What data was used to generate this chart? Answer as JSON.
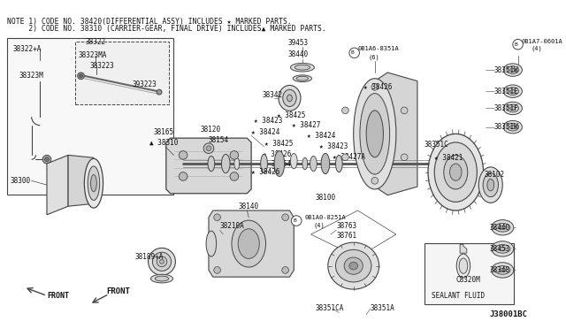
{
  "bg_color": "#ffffff",
  "line_color": "#444444",
  "text_color": "#111111",
  "note_line1": "NOTE 1) CODE NO. 38420(DIFFERENTIAL ASSY) INCLUDES ★ MARKED PARTS.",
  "note_line2": "     2) CODE NO. 38310 (CARRIER-GEAR, FINAL DRIVE) INCLUDES▲ MARKED PARTS.",
  "diagram_id": "J38001BC",
  "sealant_label": "SEALANT FLUID",
  "sealant_part": "C8320M",
  "figsize": [
    6.4,
    3.72
  ],
  "dpi": 100
}
